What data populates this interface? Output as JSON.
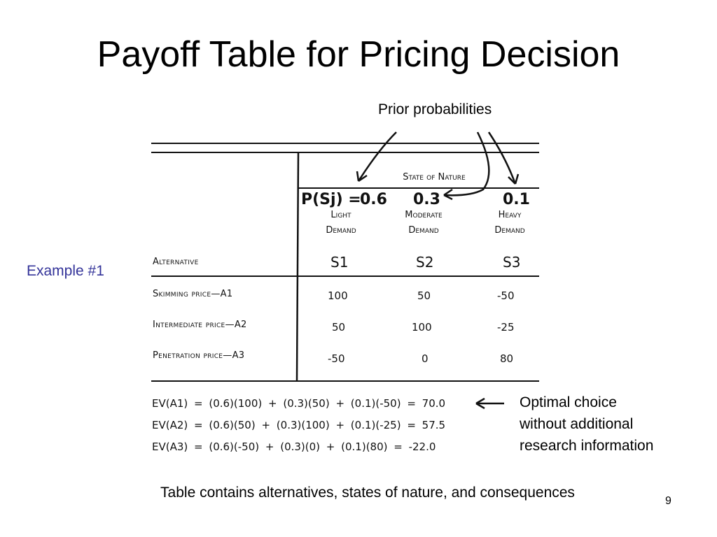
{
  "slide": {
    "title": "Payoff Table for Pricing Decision",
    "prior_note": "Prior probabilities",
    "example_label": "Example #1",
    "optimal_note": [
      "Optimal choice",
      "without additional",
      "research information"
    ],
    "caption": "Table contains alternatives, states of nature, and consequences",
    "page_number": "9"
  },
  "table": {
    "state_header": "State of Nature",
    "prob_prefix": "P(Sj) =",
    "probabilities": [
      "0.6",
      "0.3",
      "0.1"
    ],
    "states": [
      {
        "line1": "Light",
        "line2": "Demand",
        "symbol": "S1"
      },
      {
        "line1": "Moderate",
        "line2": "Demand",
        "symbol": "S2"
      },
      {
        "line1": "Heavy",
        "line2": "Demand",
        "symbol": "S3"
      }
    ],
    "alternative_header": "Alternative",
    "rows": [
      {
        "label": "Skimming price—A1",
        "values": [
          "100",
          "50",
          "-50"
        ]
      },
      {
        "label": "Intermediate price—A2",
        "values": [
          "50",
          "100",
          "-25"
        ]
      },
      {
        "label": "Penetration price—A3",
        "values": [
          "-50",
          "0",
          "80"
        ]
      }
    ]
  },
  "expected_values": [
    "EV(A1) = (0.6)(100) + (0.3)(50) + (0.1)(-50) = 70.0",
    "EV(A2) = (0.6)(50) + (0.3)(100) + (0.1)(-25) = 57.5",
    "EV(A3) = (0.6)(-50) + (0.3)(0) + (0.1)(80) = -22.0"
  ]
}
